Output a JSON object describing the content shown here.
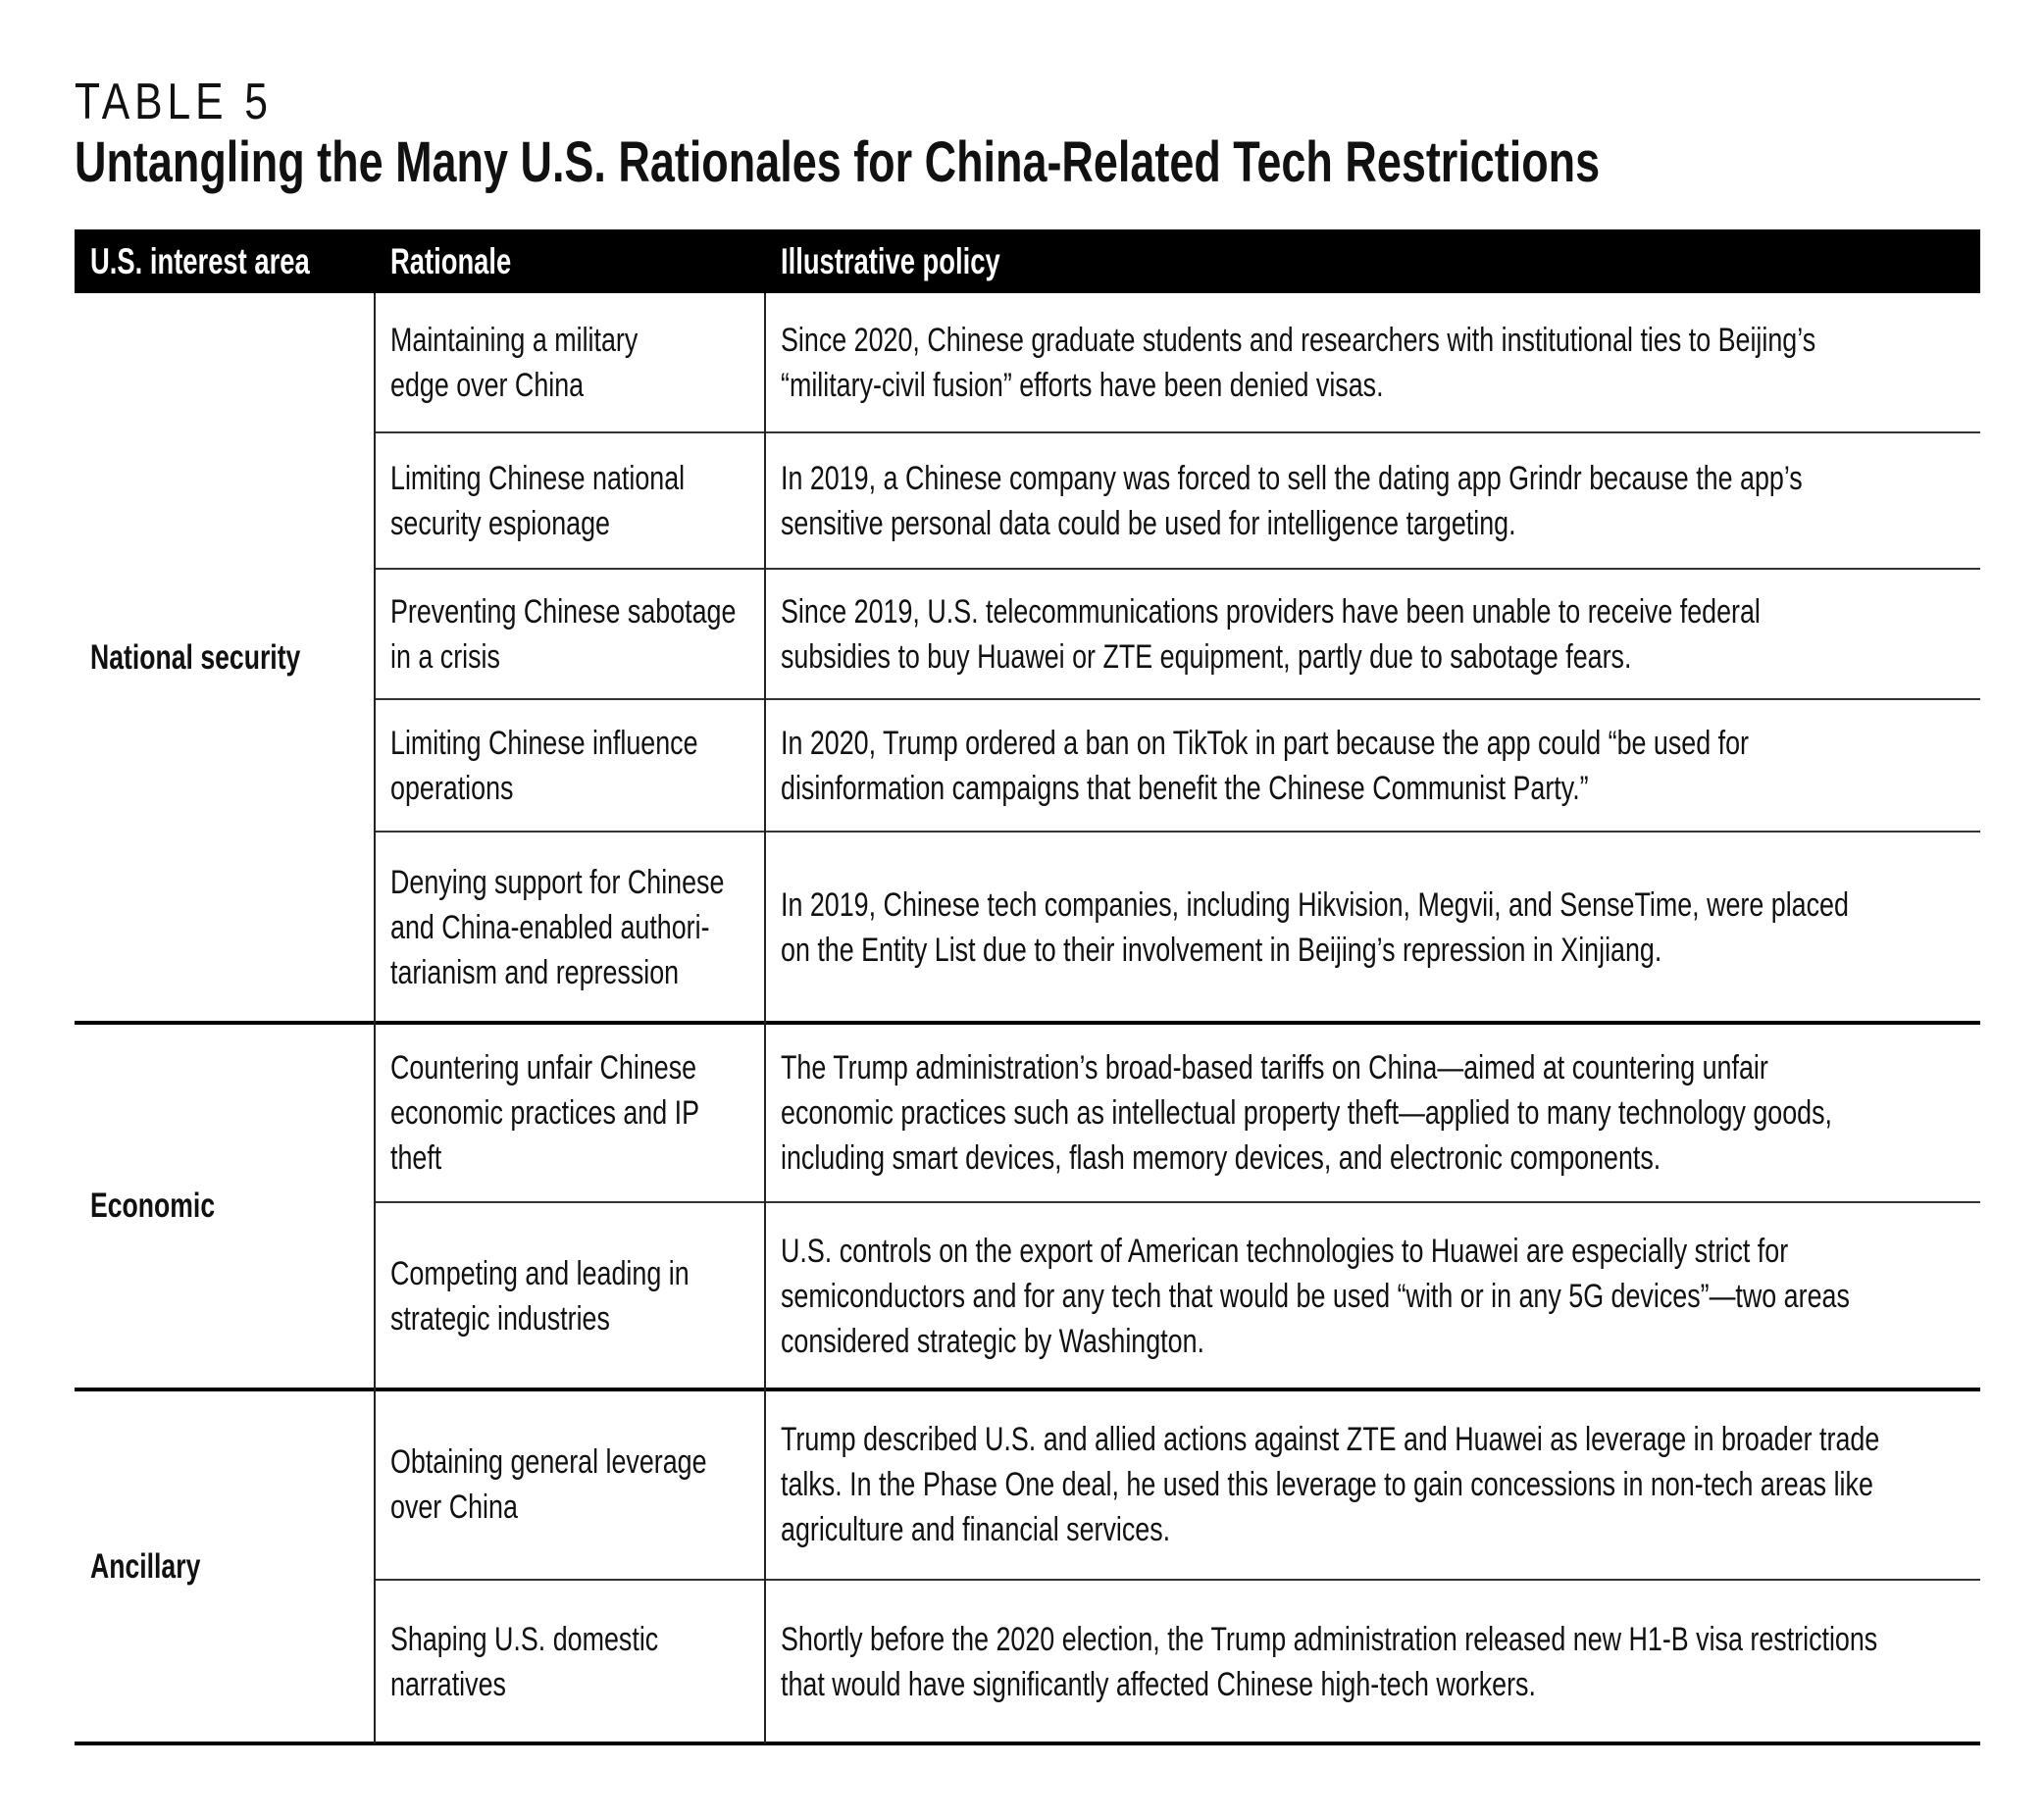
{
  "kicker": "TABLE 5",
  "title": "Untangling the Many U.S. Rationales for China-Related Tech Restrictions",
  "columns": [
    "U.S. interest area",
    "Rationale",
    "Illustrative policy"
  ],
  "groups": [
    {
      "label": "National security",
      "rows": [
        {
          "rationale": [
            "Maintaining a military",
            "edge over China"
          ],
          "policy": [
            "Since 2020, Chinese graduate students and researchers with institutional ties to Beijing’s",
            "“military-civil fusion” efforts have been denied visas."
          ]
        },
        {
          "rationale": [
            "Limiting Chinese national",
            "security espionage"
          ],
          "policy": [
            "In 2019, a Chinese company was forced to sell the dating app Grindr because the app’s",
            "sensitive personal data could be used for intelligence targeting."
          ]
        },
        {
          "rationale": [
            "Preventing Chinese sabotage",
            "in a crisis"
          ],
          "policy": [
            "Since 2019, U.S. telecommunications providers have been unable to receive federal",
            "subsidies to buy Huawei or ZTE equipment, partly due to sabotage fears."
          ]
        },
        {
          "rationale": [
            "Limiting Chinese influence",
            "operations"
          ],
          "policy": [
            "In 2020, Trump ordered a ban on TikTok in part because the app could “be used for",
            "disinformation campaigns that benefit the Chinese Communist Party.”"
          ]
        },
        {
          "rationale": [
            "Denying support for Chinese",
            "and China-enabled authori-",
            "tarianism and repression"
          ],
          "policy": [
            "In 2019, Chinese tech companies, including Hikvision, Megvii, and SenseTime, were placed",
            "on the Entity List due to their involvement in Beijing’s repression in Xinjiang."
          ]
        }
      ]
    },
    {
      "label": "Economic",
      "rows": [
        {
          "rationale": [
            "Countering unfair Chinese",
            "economic practices and IP",
            "theft"
          ],
          "policy": [
            "The Trump administration’s broad-based tariffs on China—aimed at countering unfair",
            "economic practices such as intellectual property theft—applied to many technology goods,",
            "including smart devices, flash memory devices, and electronic components."
          ]
        },
        {
          "rationale": [
            "Competing and leading in",
            "strategic industries"
          ],
          "policy": [
            "U.S. controls on the export of American technologies to Huawei are especially strict for",
            "semiconductors and for any tech that would be used “with or in any 5G devices”—two areas",
            "considered strategic by Washington."
          ]
        }
      ]
    },
    {
      "label": "Ancillary",
      "rows": [
        {
          "rationale": [
            "Obtaining general leverage",
            "over China"
          ],
          "policy": [
            "Trump described U.S. and allied actions against ZTE and Huawei as leverage in broader trade",
            "talks. In the Phase One deal, he used this leverage to gain concessions in non-tech areas like",
            "agriculture and financial services."
          ]
        },
        {
          "rationale": [
            "Shaping U.S. domestic",
            "narratives"
          ],
          "policy": [
            "Shortly before the 2020 election, the Trump administration released new H1-B visa restrictions",
            "that would have significantly affected Chinese high-tech workers."
          ]
        }
      ]
    }
  ]
}
